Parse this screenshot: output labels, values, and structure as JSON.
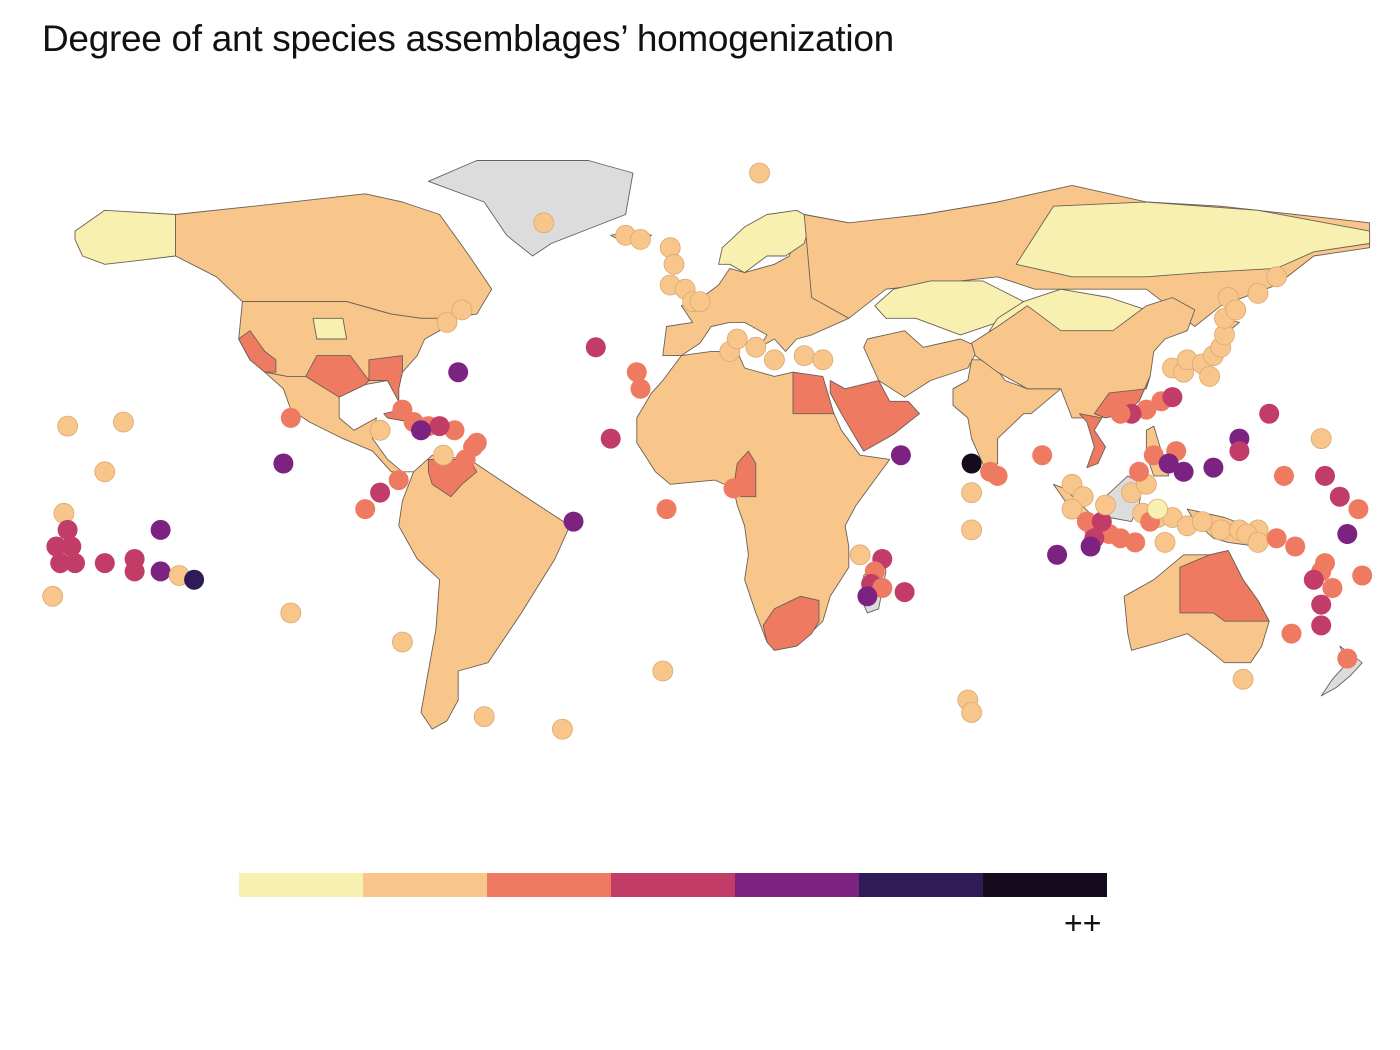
{
  "title": "Degree of ant species assemblages’ homogenization",
  "legend": {
    "max_label": "++",
    "colors": [
      "#f7f0b0",
      "#f8c68a",
      "#ee7a62",
      "#c23c68",
      "#7c2382",
      "#2f1b58",
      "#140b1c"
    ]
  },
  "map": {
    "no_data_color": "#dcdcdc",
    "border_color": "#6b6055",
    "regions": [
      {
        "name": "alaska",
        "level": 0
      },
      {
        "name": "canada",
        "level": 1
      },
      {
        "name": "usa",
        "level": 1
      },
      {
        "name": "usa-great-plains",
        "level": 0
      },
      {
        "name": "usa-california",
        "level": 2
      },
      {
        "name": "usa-texas-gulf",
        "level": 2
      },
      {
        "name": "usa-southeast",
        "level": 2
      },
      {
        "name": "mexico-central-america",
        "level": 1
      },
      {
        "name": "cuba",
        "level": 2
      },
      {
        "name": "south-america",
        "level": 1
      },
      {
        "name": "venezuela",
        "level": 2
      },
      {
        "name": "greenland",
        "level": -1
      },
      {
        "name": "iceland",
        "level": 1
      },
      {
        "name": "europe",
        "level": 1
      },
      {
        "name": "scandinavia",
        "level": 0
      },
      {
        "name": "russia",
        "level": 1
      },
      {
        "name": "siberia",
        "level": 0
      },
      {
        "name": "kazakhstan",
        "level": 0
      },
      {
        "name": "mongolia-china-north",
        "level": 0
      },
      {
        "name": "central-asia",
        "level": 1
      },
      {
        "name": "africa",
        "level": 1
      },
      {
        "name": "egypt",
        "level": 2
      },
      {
        "name": "arabian-peninsula",
        "level": 2
      },
      {
        "name": "cameroon",
        "level": 2
      },
      {
        "name": "south-africa",
        "level": 2
      },
      {
        "name": "madagascar",
        "level": -1
      },
      {
        "name": "india",
        "level": 1
      },
      {
        "name": "china",
        "level": 1
      },
      {
        "name": "southeast-china",
        "level": 2
      },
      {
        "name": "vietnam",
        "level": 2
      },
      {
        "name": "japan",
        "level": 1
      },
      {
        "name": "taiwan",
        "level": 2
      },
      {
        "name": "indonesia",
        "level": 1
      },
      {
        "name": "philippines",
        "level": 1
      },
      {
        "name": "borneo-sulawesi",
        "level": -1
      },
      {
        "name": "new-guinea",
        "level": 1
      },
      {
        "name": "australia",
        "level": 1
      },
      {
        "name": "australia-northeast",
        "level": 2
      },
      {
        "name": "new-zealand",
        "level": -1
      }
    ],
    "points": [
      {
        "lon": -42,
        "lat": 68,
        "level": 1
      },
      {
        "lon": -20,
        "lat": 65,
        "level": 1
      },
      {
        "lon": -16,
        "lat": 64,
        "level": 1
      },
      {
        "lon": -8,
        "lat": 62,
        "level": 1
      },
      {
        "lon": -7,
        "lat": 58,
        "level": 1
      },
      {
        "lon": 16,
        "lat": 80,
        "level": 1
      },
      {
        "lon": -8,
        "lat": 53,
        "level": 1
      },
      {
        "lon": -4,
        "lat": 52,
        "level": 1
      },
      {
        "lon": -2,
        "lat": 49,
        "level": 1
      },
      {
        "lon": 0,
        "lat": 49,
        "level": 1
      },
      {
        "lon": -68,
        "lat": 44,
        "level": 1
      },
      {
        "lon": -64,
        "lat": 47,
        "level": 1
      },
      {
        "lon": -28,
        "lat": 38,
        "level": 3
      },
      {
        "lon": -65,
        "lat": 32,
        "level": 4
      },
      {
        "lon": -17,
        "lat": 32,
        "level": 2
      },
      {
        "lon": -16,
        "lat": 28,
        "level": 2
      },
      {
        "lon": -24,
        "lat": 16,
        "level": 3
      },
      {
        "lon": -9,
        "lat": -1,
        "level": 2
      },
      {
        "lon": -34,
        "lat": -4,
        "level": 4
      },
      {
        "lon": 8,
        "lat": 37,
        "level": 1
      },
      {
        "lon": 10,
        "lat": 40,
        "level": 1
      },
      {
        "lon": 20,
        "lat": 35,
        "level": 1
      },
      {
        "lon": 28,
        "lat": 36,
        "level": 1
      },
      {
        "lon": 33,
        "lat": 35,
        "level": 1
      },
      {
        "lon": 15,
        "lat": 38,
        "level": 1
      },
      {
        "lon": -80,
        "lat": 23,
        "level": 2
      },
      {
        "lon": -77,
        "lat": 20,
        "level": 2
      },
      {
        "lon": -73,
        "lat": 19,
        "level": 2
      },
      {
        "lon": -66,
        "lat": 18,
        "level": 2
      },
      {
        "lon": -70,
        "lat": 19,
        "level": 3
      },
      {
        "lon": -75,
        "lat": 18,
        "level": 4
      },
      {
        "lon": -61,
        "lat": 14,
        "level": 2
      },
      {
        "lon": -63,
        "lat": 11,
        "level": 2
      },
      {
        "lon": -69,
        "lat": 12,
        "level": 1
      },
      {
        "lon": -86,
        "lat": 18,
        "level": 1
      },
      {
        "lon": -60,
        "lat": 15,
        "level": 2
      },
      {
        "lon": -110,
        "lat": 21,
        "level": 2
      },
      {
        "lon": -112,
        "lat": 10,
        "level": 4
      },
      {
        "lon": -81,
        "lat": 6,
        "level": 2
      },
      {
        "lon": -86,
        "lat": 3,
        "level": 3
      },
      {
        "lon": -90,
        "lat": -1,
        "level": 2
      },
      {
        "lon": -155,
        "lat": 20,
        "level": 1
      },
      {
        "lon": -170,
        "lat": 19,
        "level": 1
      },
      {
        "lon": -160,
        "lat": 8,
        "level": 1
      },
      {
        "lon": -171,
        "lat": -2,
        "level": 1
      },
      {
        "lon": -170,
        "lat": -6,
        "level": 3
      },
      {
        "lon": -173,
        "lat": -10,
        "level": 3
      },
      {
        "lon": -169,
        "lat": -10,
        "level": 3
      },
      {
        "lon": -172,
        "lat": -14,
        "level": 3
      },
      {
        "lon": -168,
        "lat": -14,
        "level": 3
      },
      {
        "lon": -160,
        "lat": -14,
        "level": 3
      },
      {
        "lon": -152,
        "lat": -13,
        "level": 3
      },
      {
        "lon": -152,
        "lat": -16,
        "level": 3
      },
      {
        "lon": -145,
        "lat": -16,
        "level": 4
      },
      {
        "lon": -140,
        "lat": -17,
        "level": 1
      },
      {
        "lon": -136,
        "lat": -18,
        "level": 5
      },
      {
        "lon": -145,
        "lat": -6,
        "level": 4
      },
      {
        "lon": -174,
        "lat": -22,
        "level": 1
      },
      {
        "lon": -110,
        "lat": -26,
        "level": 1
      },
      {
        "lon": -80,
        "lat": -33,
        "level": 1
      },
      {
        "lon": -58,
        "lat": -51,
        "level": 1
      },
      {
        "lon": -37,
        "lat": -54,
        "level": 1
      },
      {
        "lon": -10,
        "lat": -40,
        "level": 1
      },
      {
        "lon": 9,
        "lat": 4,
        "level": 2
      },
      {
        "lon": 43,
        "lat": -12,
        "level": 1
      },
      {
        "lon": 49,
        "lat": -13,
        "level": 3
      },
      {
        "lon": 47,
        "lat": -16,
        "level": 2
      },
      {
        "lon": 46,
        "lat": -19,
        "level": 3
      },
      {
        "lon": 49,
        "lat": -20,
        "level": 2
      },
      {
        "lon": 45,
        "lat": -22,
        "level": 4
      },
      {
        "lon": 55,
        "lat": -21,
        "level": 3
      },
      {
        "lon": 54,
        "lat": 12,
        "level": 4
      },
      {
        "lon": 73,
        "lat": 10,
        "level": 6
      },
      {
        "lon": 73,
        "lat": 3,
        "level": 1
      },
      {
        "lon": 73,
        "lat": -6,
        "level": 1
      },
      {
        "lon": 78,
        "lat": 8,
        "level": 2
      },
      {
        "lon": 80,
        "lat": 7,
        "level": 2
      },
      {
        "lon": 92,
        "lat": 12,
        "level": 2
      },
      {
        "lon": 72,
        "lat": -47,
        "level": 1
      },
      {
        "lon": 73,
        "lat": -50,
        "level": 1
      },
      {
        "lon": 100,
        "lat": 5,
        "level": 1
      },
      {
        "lon": 103,
        "lat": 2,
        "level": 1
      },
      {
        "lon": 100,
        "lat": -1,
        "level": 1
      },
      {
        "lon": 104,
        "lat": -4,
        "level": 2
      },
      {
        "lon": 106,
        "lat": -6,
        "level": 2
      },
      {
        "lon": 110,
        "lat": -7,
        "level": 2
      },
      {
        "lon": 113,
        "lat": -8,
        "level": 2
      },
      {
        "lon": 108,
        "lat": -4,
        "level": 3
      },
      {
        "lon": 106,
        "lat": -8,
        "level": 3
      },
      {
        "lon": 105,
        "lat": -10,
        "level": 4
      },
      {
        "lon": 96,
        "lat": -12,
        "level": 4
      },
      {
        "lon": 109,
        "lat": 0,
        "level": 1
      },
      {
        "lon": 116,
        "lat": 3,
        "level": 1
      },
      {
        "lon": 120,
        "lat": 5,
        "level": 1
      },
      {
        "lon": 119,
        "lat": -2,
        "level": 1
      },
      {
        "lon": 123,
        "lat": -3,
        "level": 1
      },
      {
        "lon": 127,
        "lat": -3,
        "level": 1
      },
      {
        "lon": 121,
        "lat": -4,
        "level": 2
      },
      {
        "lon": 117,
        "lat": -9,
        "level": 2
      },
      {
        "lon": 125,
        "lat": -9,
        "level": 1
      },
      {
        "lon": 131,
        "lat": -5,
        "level": 1
      },
      {
        "lon": 135,
        "lat": -4,
        "level": 1
      },
      {
        "lon": 140,
        "lat": -6,
        "level": 1
      },
      {
        "lon": 145,
        "lat": -6,
        "level": 1
      },
      {
        "lon": 150,
        "lat": -6,
        "level": 1
      },
      {
        "lon": 147,
        "lat": -7,
        "level": 1
      },
      {
        "lon": 150,
        "lat": -9,
        "level": 1
      },
      {
        "lon": 155,
        "lat": -8,
        "level": 2
      },
      {
        "lon": 123,
        "lat": -1,
        "level": 0
      },
      {
        "lon": 122,
        "lat": 12,
        "level": 2
      },
      {
        "lon": 118,
        "lat": 8,
        "level": 2
      },
      {
        "lon": 128,
        "lat": 13,
        "level": 2
      },
      {
        "lon": 130,
        "lat": 8,
        "level": 4
      },
      {
        "lon": 126,
        "lat": 10,
        "level": 4
      },
      {
        "lon": 120,
        "lat": 23,
        "level": 2
      },
      {
        "lon": 124,
        "lat": 25,
        "level": 2
      },
      {
        "lon": 127,
        "lat": 26,
        "level": 3
      },
      {
        "lon": 116,
        "lat": 22,
        "level": 3
      },
      {
        "lon": 113,
        "lat": 22,
        "level": 2
      },
      {
        "lon": 127,
        "lat": 33,
        "level": 1
      },
      {
        "lon": 130,
        "lat": 32,
        "level": 1
      },
      {
        "lon": 131,
        "lat": 35,
        "level": 1
      },
      {
        "lon": 135,
        "lat": 34,
        "level": 1
      },
      {
        "lon": 138,
        "lat": 36,
        "level": 1
      },
      {
        "lon": 140,
        "lat": 38,
        "level": 1
      },
      {
        "lon": 141,
        "lat": 41,
        "level": 1
      },
      {
        "lon": 141,
        "lat": 45,
        "level": 1
      },
      {
        "lon": 142,
        "lat": 50,
        "level": 1
      },
      {
        "lon": 144,
        "lat": 47,
        "level": 1
      },
      {
        "lon": 150,
        "lat": 51,
        "level": 1
      },
      {
        "lon": 155,
        "lat": 55,
        "level": 1
      },
      {
        "lon": 137,
        "lat": 31,
        "level": 1
      },
      {
        "lon": 145,
        "lat": 16,
        "level": 4
      },
      {
        "lon": 153,
        "lat": 22,
        "level": 3
      },
      {
        "lon": 138,
        "lat": 9,
        "level": 4
      },
      {
        "lon": 145,
        "lat": 13,
        "level": 3
      },
      {
        "lon": 157,
        "lat": 7,
        "level": 2
      },
      {
        "lon": 168,
        "lat": 7,
        "level": 3
      },
      {
        "lon": 172,
        "lat": 2,
        "level": 3
      },
      {
        "lon": 174,
        "lat": -7,
        "level": 4
      },
      {
        "lon": 177,
        "lat": -1,
        "level": 2
      },
      {
        "lon": 167,
        "lat": 16,
        "level": 1
      },
      {
        "lon": 160,
        "lat": -10,
        "level": 2
      },
      {
        "lon": 167,
        "lat": -16,
        "level": 2
      },
      {
        "lon": 168,
        "lat": -14,
        "level": 2
      },
      {
        "lon": 178,
        "lat": -17,
        "level": 2
      },
      {
        "lon": 170,
        "lat": -20,
        "level": 2
      },
      {
        "lon": 165,
        "lat": -18,
        "level": 3
      },
      {
        "lon": 167,
        "lat": -24,
        "level": 3
      },
      {
        "lon": 159,
        "lat": -31,
        "level": 2
      },
      {
        "lon": 174,
        "lat": -37,
        "level": 2
      },
      {
        "lon": 167,
        "lat": -29,
        "level": 3
      },
      {
        "lon": 146,
        "lat": -42,
        "level": 1
      }
    ]
  }
}
